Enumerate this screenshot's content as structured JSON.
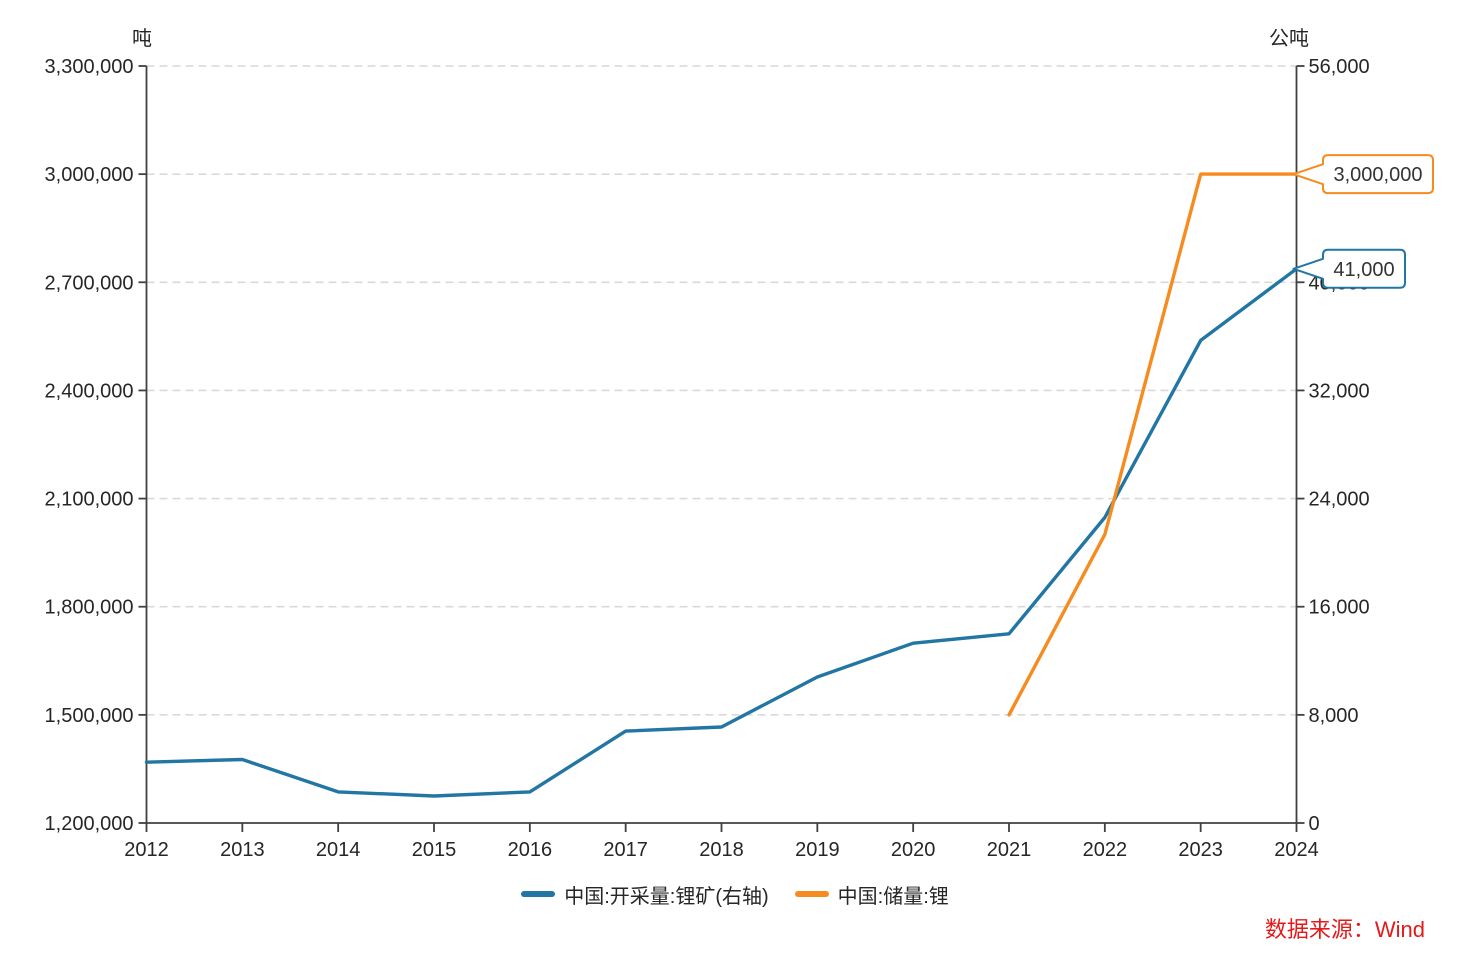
{
  "units": {
    "left": "吨",
    "right": "公吨"
  },
  "source": "数据来源：Wind",
  "colors": {
    "mining_blue": "#2276a4",
    "reserves_orange": "#f68b1f",
    "axis_line": "#404040",
    "tick_text": "#262626",
    "gridline": "#d9d9d9",
    "source_red": "#e31a1a",
    "callout_bg": "#ffffff"
  },
  "legend": [
    {
      "label": "中国:开采量:锂矿(右轴)",
      "color": "#2276a4"
    },
    {
      "label": "中国:储量:锂",
      "color": "#f68b1f"
    }
  ],
  "chart_data": {
    "type": "line",
    "title": "",
    "x_ticks": [
      2012,
      2013,
      2014,
      2015,
      2016,
      2017,
      2018,
      2019,
      2020,
      2021,
      2022,
      2023,
      2024
    ],
    "x_range": [
      2012,
      2024
    ],
    "left_axis": {
      "label": "吨",
      "min": 1200000,
      "max": 3300000,
      "step": 300000,
      "tick_labels": [
        "1,200,000",
        "1,500,000",
        "1,800,000",
        "2,100,000",
        "2,400,000",
        "2,700,000",
        "3,000,000",
        "3,300,000"
      ]
    },
    "right_axis": {
      "label": "公吨",
      "min": 0,
      "max": 56000,
      "step": 8000,
      "tick_labels": [
        "0",
        "8,000",
        "16,000",
        "24,000",
        "32,000",
        "40,000",
        "48,000",
        "56,000"
      ]
    },
    "grid": "horizontal-dashed",
    "legend_position": "bottom-center",
    "series": [
      {
        "name": "中国:开采量:锂矿(右轴)",
        "axis": "right",
        "color": "#2276a4",
        "x": [
          2012,
          2013,
          2014,
          2015,
          2016,
          2017,
          2018,
          2019,
          2020,
          2021,
          2022,
          2023,
          2024
        ],
        "values": [
          4500,
          4700,
          2300,
          2000,
          2300,
          6800,
          7100,
          10800,
          13300,
          14000,
          22600,
          35700,
          41000
        ]
      },
      {
        "name": "中国:储量:锂",
        "axis": "left",
        "color": "#f68b1f",
        "x": [
          2021,
          2022,
          2023,
          2024
        ],
        "values": [
          1500000,
          2000000,
          3000000,
          3000000
        ]
      }
    ],
    "annotations": [
      {
        "text": "3,000,000",
        "value": 3000000,
        "axis": "left",
        "color": "#f68b1f",
        "series": "中国:储量:锂"
      },
      {
        "text": "41,000",
        "value": 41000,
        "axis": "right",
        "color": "#2276a4",
        "series": "中国:开采量:锂矿(右轴)"
      }
    ]
  }
}
